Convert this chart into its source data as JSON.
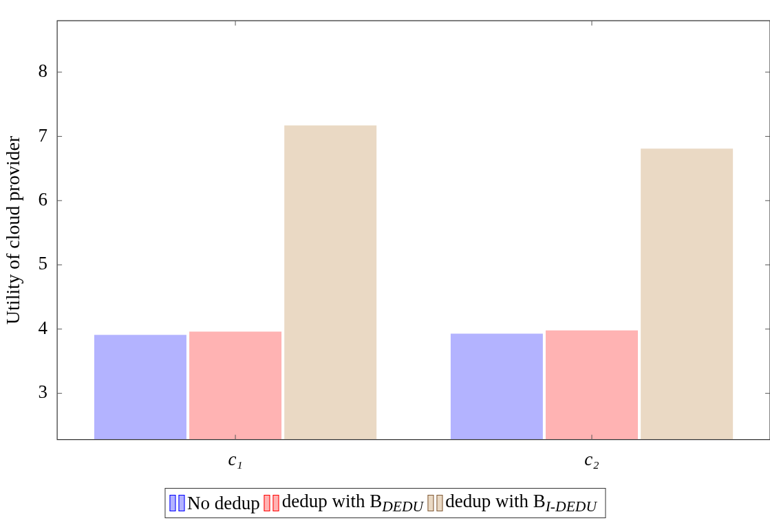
{
  "chart_data": {
    "type": "bar",
    "ylabel": "Utility of cloud provider",
    "categories": [
      "c₁",
      "c₂"
    ],
    "series": [
      {
        "name": "No dedup",
        "color": "#b3b3ff",
        "values": [
          3.91,
          3.93
        ]
      },
      {
        "name": "dedup with B$_{DEDU}$",
        "color": "#ffb3b3",
        "values": [
          3.96,
          3.98
        ]
      },
      {
        "name": "dedup with B$_{I-DEDU}$",
        "color": "#ead9c4",
        "values": [
          7.17,
          6.81
        ]
      }
    ],
    "ylim": [
      2.28,
      8.8
    ],
    "yticks": [
      3,
      4,
      5,
      6,
      7,
      8
    ],
    "grid": false,
    "legend": "bottom"
  }
}
